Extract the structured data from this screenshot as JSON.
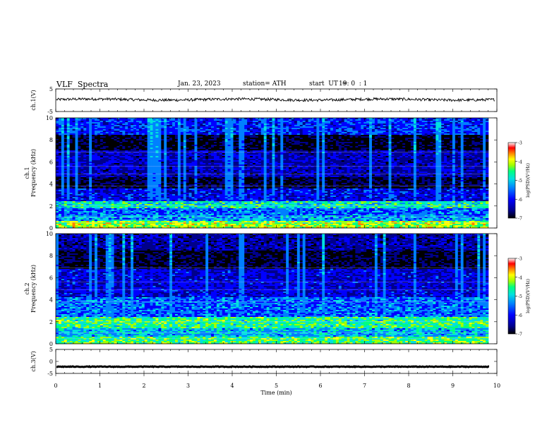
{
  "header": {
    "title": "VLF  Spectra",
    "date": "Jan. 23, 2023",
    "station": "station= ATH",
    "start_label": "start  UT  =",
    "start_time": "19: 0  : 1"
  },
  "colors": {
    "waveform": "#000000",
    "colormap": [
      "#000000",
      "#00008b",
      "#0000ff",
      "#0080ff",
      "#00e0e0",
      "#00ff80",
      "#a0ff00",
      "#ffff00",
      "#ff8000",
      "#ff0000",
      "#ffffff"
    ]
  },
  "chart_data": [
    {
      "type": "line",
      "name": "ch1-waveform",
      "ylabel": "ch.1(V)",
      "ylim": [
        -5,
        5
      ],
      "yticks": [
        "5",
        "-5"
      ],
      "xlim": [
        0,
        10
      ],
      "approx_level": 0.3,
      "approx_amplitude": 0.6
    },
    {
      "type": "heatmap",
      "name": "ch1-spectrogram",
      "ylabel": "ch.1\nFrequency  (kHz)",
      "ylabel_lines": [
        "ch.1",
        "Frequency  (kHz)"
      ],
      "ylim": [
        0,
        10
      ],
      "yticks": [
        "0",
        "2",
        "4",
        "6",
        "8",
        "10"
      ],
      "xlim": [
        0,
        9.8
      ],
      "colorbar": {
        "label": "log(PSD)(V²/Hz)",
        "range": [
          -7,
          -3
        ],
        "ticks": [
          "-3",
          "-4",
          "-5",
          "-6",
          "-7"
        ]
      },
      "bands_khz": [
        {
          "range": [
            0,
            0.6
          ],
          "level": -4.0
        },
        {
          "range": [
            0.6,
            1.2
          ],
          "level": -5.0
        },
        {
          "range": [
            1.2,
            1.8
          ],
          "level": -5.3
        },
        {
          "range": [
            1.8,
            2.4
          ],
          "level": -4.6
        },
        {
          "range": [
            2.4,
            3.6
          ],
          "level": -5.8
        },
        {
          "range": [
            3.6,
            4.6
          ],
          "level": -6.7
        },
        {
          "range": [
            4.6,
            7.0
          ],
          "level": -6.1
        },
        {
          "range": [
            7.0,
            8.5
          ],
          "level": -6.8
        },
        {
          "range": [
            8.5,
            10
          ],
          "level": -5.6
        }
      ]
    },
    {
      "type": "heatmap",
      "name": "ch2-spectrogram",
      "ylabel": "ch.2\nFrequency  (kHz)",
      "ylabel_lines": [
        "ch.2",
        "Frequency  (kHz)"
      ],
      "ylim": [
        0,
        10
      ],
      "yticks": [
        "0",
        "2",
        "4",
        "6",
        "8",
        "10"
      ],
      "xlim": [
        0,
        9.8
      ],
      "colorbar": {
        "label": "log(PSD)(V²/Hz)",
        "range": [
          -7,
          -3
        ],
        "ticks": [
          "-3",
          "-4",
          "-5",
          "-6",
          "-7"
        ]
      },
      "bands_khz": [
        {
          "range": [
            0,
            0.6
          ],
          "level": -4.3
        },
        {
          "range": [
            0.6,
            1.4
          ],
          "level": -4.9
        },
        {
          "range": [
            1.4,
            2.4
          ],
          "level": -4.4
        },
        {
          "range": [
            2.4,
            4.2
          ],
          "level": -5.3
        },
        {
          "range": [
            4.2,
            6.8
          ],
          "level": -5.9
        },
        {
          "range": [
            6.8,
            8.4
          ],
          "level": -6.7
        },
        {
          "range": [
            8.4,
            10
          ],
          "level": -6.2
        }
      ]
    },
    {
      "type": "line",
      "name": "ch3-waveform",
      "ylabel": "ch.3(V)",
      "ylim": [
        -5,
        5
      ],
      "yticks": [
        "5",
        "0",
        "-5"
      ],
      "xlim": [
        0,
        10
      ],
      "approx_level": -2.2,
      "approx_amplitude": 0.15,
      "xlabel": "Time  (min)",
      "xticks": [
        "0",
        "1",
        "2",
        "3",
        "4",
        "5",
        "6",
        "7",
        "8",
        "9",
        "10"
      ]
    }
  ]
}
